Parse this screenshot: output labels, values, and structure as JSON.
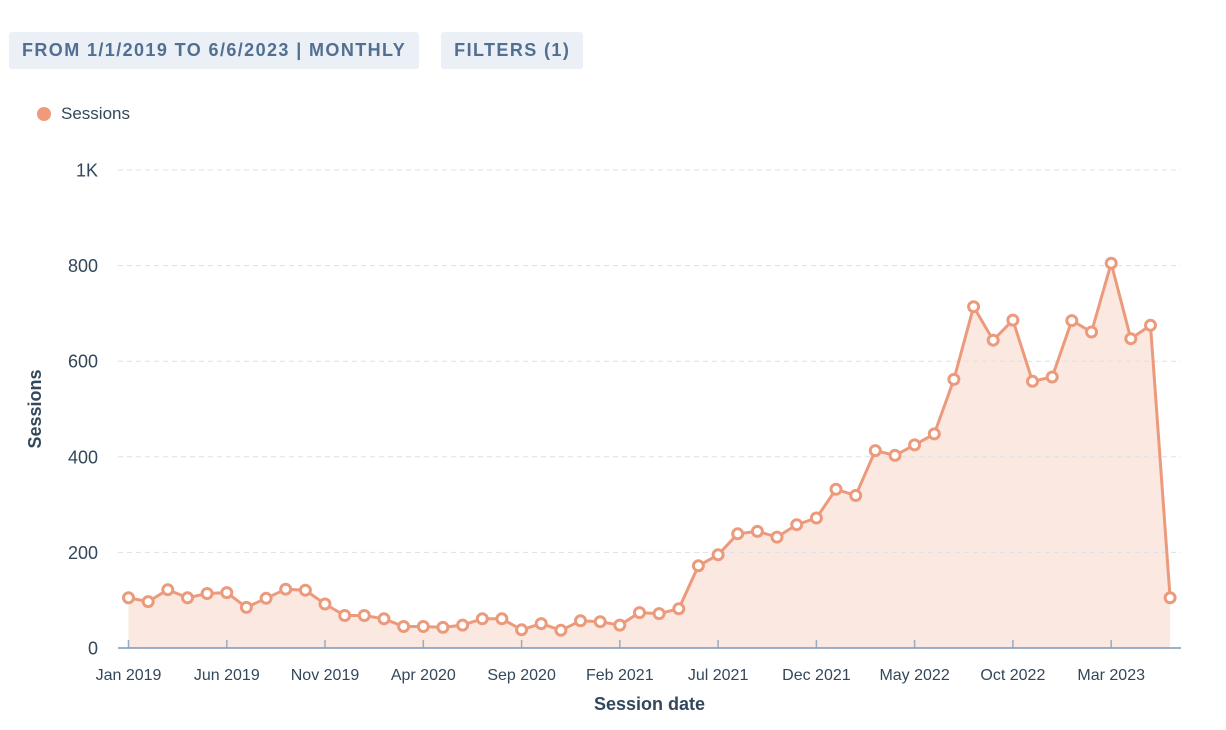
{
  "toolbar": {
    "range_chip_label": "FROM 1/1/2019 TO 6/6/2023 | MONTHLY",
    "filters_chip_label": "FILTERS (1)"
  },
  "legend": {
    "items": [
      {
        "label": "Sessions",
        "color": "#f09a7b"
      }
    ]
  },
  "chart_data": {
    "type": "area",
    "title": "",
    "xlabel": "Session date",
    "ylabel": "Sessions",
    "categories": [
      "Jan 2019",
      "Feb 2019",
      "Mar 2019",
      "Apr 2019",
      "May 2019",
      "Jun 2019",
      "Jul 2019",
      "Aug 2019",
      "Sep 2019",
      "Oct 2019",
      "Nov 2019",
      "Dec 2019",
      "Jan 2020",
      "Feb 2020",
      "Mar 2020",
      "Apr 2020",
      "May 2020",
      "Jun 2020",
      "Jul 2020",
      "Aug 2020",
      "Sep 2020",
      "Oct 2020",
      "Nov 2020",
      "Dec 2020",
      "Jan 2021",
      "Feb 2021",
      "Mar 2021",
      "Apr 2021",
      "May 2021",
      "Jun 2021",
      "Jul 2021",
      "Aug 2021",
      "Sep 2021",
      "Oct 2021",
      "Nov 2021",
      "Dec 2021",
      "Jan 2022",
      "Feb 2022",
      "Mar 2022",
      "Apr 2022",
      "May 2022",
      "Jun 2022",
      "Jul 2022",
      "Aug 2022",
      "Sep 2022",
      "Oct 2022",
      "Nov 2022",
      "Dec 2022",
      "Jan 2023",
      "Feb 2023",
      "Mar 2023",
      "Apr 2023",
      "May 2023",
      "Jun 2023"
    ],
    "series": [
      {
        "name": "Sessions",
        "values": [
          105,
          97,
          122,
          105,
          114,
          116,
          85,
          104,
          123,
          121,
          92,
          68,
          68,
          61,
          45,
          45,
          43,
          48,
          61,
          61,
          38,
          51,
          37,
          57,
          55,
          48,
          74,
          72,
          82,
          172,
          195,
          239,
          244,
          232,
          258,
          272,
          332,
          319,
          413,
          403,
          425,
          448,
          562,
          714,
          644,
          686,
          558,
          567,
          685,
          661,
          805,
          647,
          675,
          105
        ]
      }
    ],
    "x_tick_labels": [
      "Jan 2019",
      "Jun 2019",
      "Nov 2019",
      "Apr 2020",
      "Sep 2020",
      "Feb 2021",
      "Jul 2021",
      "Dec 2021",
      "May 2022",
      "Oct 2022",
      "Mar 2023"
    ],
    "x_tick_every": 5,
    "y_ticks": [
      0,
      200,
      400,
      600,
      800,
      1000
    ],
    "y_tick_labels": [
      "0",
      "200",
      "400",
      "600",
      "800",
      "1K"
    ],
    "ylim": [
      0,
      1000
    ],
    "grid": "dashed-horizontal",
    "legend_position": "top-left",
    "colors": {
      "line": "#ec9a7c",
      "marker_fill": "#ffffff",
      "area_fill": "#fbe8e0",
      "gridline": "#d9e0e9",
      "axis_line": "#7c98b6",
      "tick_mark": "#99acc2",
      "label_text": "#33475b"
    }
  }
}
